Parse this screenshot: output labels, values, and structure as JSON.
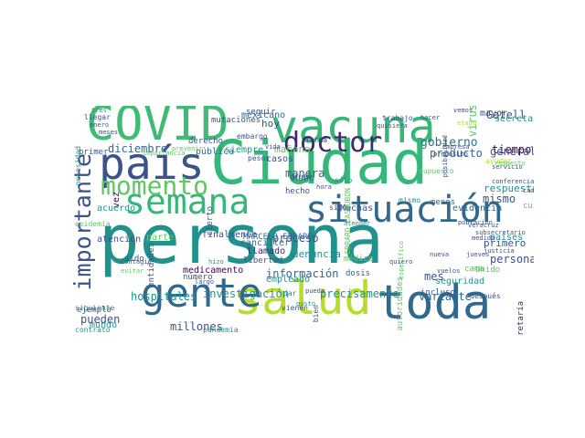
{
  "colors": {
    "background": "#ffffff",
    "viridis": [
      "#440154",
      "#3b528b",
      "#21918c",
      "#5ec962",
      "#fde725"
    ]
  },
  "words": [
    {
      "text": "persona",
      "c": "#21918c"
    },
    {
      "text": "Ciudad",
      "c": "#35b779"
    },
    {
      "text": "COVID",
      "c": "#3fbc73"
    },
    {
      "text": "vacuna",
      "c": "#35b779"
    },
    {
      "text": "país",
      "c": "#3b528b"
    },
    {
      "text": "salud",
      "c": "#b5de2b"
    },
    {
      "text": "toda",
      "c": "#31688e"
    },
    {
      "text": "semana",
      "c": "#35b779"
    },
    {
      "text": "gente",
      "c": "#31688e"
    },
    {
      "text": "situación",
      "c": "#31688e"
    },
    {
      "text": "momento",
      "c": "#5ec962"
    },
    {
      "text": "doctor",
      "c": "#3b2a6e"
    },
    {
      "text": "importante",
      "c": "#3b528b"
    },
    {
      "text": "investigación",
      "c": "#21918c"
    },
    {
      "text": "hospitales",
      "c": "#21918c"
    },
    {
      "text": "precisamente",
      "c": "#21918c"
    },
    {
      "text": "variante",
      "c": "#31688e"
    },
    {
      "text": "gobierno",
      "c": "#2c728e"
    },
    {
      "text": "diciembre",
      "c": "#31688e"
    },
    {
      "text": "manera",
      "c": "#31688e"
    },
    {
      "text": "mañana",
      "c": "#5ec962"
    },
    {
      "text": "producto",
      "c": "#31688e"
    },
    {
      "text": "Gatell",
      "c": "#3b528b"
    },
    {
      "text": "fase",
      "c": "#3b528b"
    },
    {
      "text": "tiempo",
      "c": "#440154"
    },
    {
      "text": "general",
      "c": "#3b528b"
    },
    {
      "text": "mismo",
      "c": "#3b528b"
    },
    {
      "text": "proceso",
      "c": "#3b528b"
    },
    {
      "text": "información",
      "c": "#31688e"
    },
    {
      "text": "denuncia",
      "c": "#21918c"
    },
    {
      "text": "llamado",
      "c": "#3b2a6e"
    },
    {
      "text": "medicamento",
      "c": "#440154"
    },
    {
      "text": "millones",
      "c": "#3b528b"
    },
    {
      "text": "pueden",
      "c": "#3b528b"
    },
    {
      "text": "mundo",
      "c": "#21918c"
    },
    {
      "text": "mes",
      "c": "#3b528b"
    },
    {
      "text": "personal",
      "c": "#3b528b"
    },
    {
      "text": "seguridad",
      "c": "#21918c"
    },
    {
      "text": "primero",
      "c": "#3b528b"
    },
    {
      "text": "países",
      "c": "#21918c"
    },
    {
      "text": "respuesta",
      "c": "#21918c"
    },
    {
      "text": "ayudar",
      "c": "#b5de2b"
    },
    {
      "text": "respecto",
      "c": "#5ec962"
    },
    {
      "text": "mayor",
      "c": "#3b528b"
    },
    {
      "text": "secretario",
      "c": "#21918c"
    },
    {
      "text": "virus",
      "c": "#5ec962"
    },
    {
      "text": "Secretaría",
      "c": "#3b2a6e"
    },
    {
      "text": "casos",
      "c": "#3b528b"
    },
    {
      "text": "hoy",
      "c": "#3b528b"
    },
    {
      "text": "mexicano",
      "c": "#31688e"
    },
    {
      "text": "canciller",
      "c": "#31688e"
    },
    {
      "text": "MARCELO EBRARD",
      "c": "#31688e"
    },
    {
      "text": "siempre",
      "c": "#21918c"
    },
    {
      "text": "Hugo",
      "c": "#31688e"
    },
    {
      "text": "hecho",
      "c": "#3b528b"
    },
    {
      "text": "menos",
      "c": "#31688e"
    },
    {
      "text": "evidencia",
      "c": "#31688e"
    },
    {
      "text": "Muchas",
      "c": "#3b528b"
    },
    {
      "text": "cuidado",
      "c": "#5ec962"
    },
    {
      "text": "vez",
      "c": "#440154"
    },
    {
      "text": "acuerdo",
      "c": "#21918c"
    },
    {
      "text": "parte",
      "c": "#5ec962"
    },
    {
      "text": "finalmente",
      "c": "#3b528b"
    },
    {
      "text": "libertad",
      "c": "#3b528b"
    },
    {
      "text": "empleado",
      "c": "#21918c"
    },
    {
      "text": "dosis",
      "c": "#31688e"
    },
    {
      "text": "médico",
      "c": "#5ec962"
    },
    {
      "text": "incluso",
      "c": "#3b528b"
    },
    {
      "text": "cama",
      "c": "#5ec962"
    },
    {
      "text": "Unido",
      "c": "#5ec962"
    },
    {
      "text": "después",
      "c": "#3b528b"
    },
    {
      "text": "atención",
      "c": "#3b528b"
    },
    {
      "text": "ejemplo",
      "c": "#3b528b"
    },
    {
      "text": "entidades",
      "c": "#3b528b"
    },
    {
      "text": "número",
      "c": "#3b528b"
    },
    {
      "text": "sido",
      "c": "#3b528b"
    },
    {
      "text": "pública",
      "c": "#31688e"
    },
    {
      "text": "derecho",
      "c": "#3b528b"
    },
    {
      "text": "mutaciones",
      "c": "#3b528b"
    },
    {
      "text": "seguir",
      "c": "#3b528b"
    },
    {
      "text": "cierto",
      "c": "#3b528b"
    },
    {
      "text": "sigue",
      "c": "#3b528b"
    },
    {
      "text": "EBRARD CASAUBÓN",
      "c": "#5ec962"
    },
    {
      "text": "mismo",
      "c": "#21918c"
    },
    {
      "text": "supuesto",
      "c": "#5ec962"
    },
    {
      "text": "primer",
      "c": "#3b528b"
    },
    {
      "text": "autoridades",
      "c": "#5ec962"
    },
    {
      "text": "siguiente",
      "c": "#21918c"
    },
    {
      "text": "contrato",
      "c": "#21918c"
    },
    {
      "text": "pandemia",
      "c": "#21918c"
    },
    {
      "text": "vienen",
      "c": "#3b528b"
    },
    {
      "text": "bien",
      "c": "#3b528b"
    },
    {
      "text": "dar",
      "c": "#21918c"
    },
    {
      "text": "grupo",
      "c": "#3b528b"
    },
    {
      "text": "hora",
      "c": "#3b528b"
    },
    {
      "text": "sólo",
      "c": "#21918c"
    },
    {
      "text": "forma",
      "c": "#3b528b"
    },
    {
      "text": "embargo",
      "c": "#3b528b"
    },
    {
      "text": "pesos",
      "c": "#3b528b"
    },
    {
      "text": "trabajo",
      "c": "#3b528b"
    },
    {
      "text": "quisiera",
      "c": "#3b528b"
    },
    {
      "text": "vida",
      "c": "#3b528b"
    },
    {
      "text": "meses",
      "c": "#3b528b"
    },
    {
      "text": "llegar",
      "c": "#3b528b"
    },
    {
      "text": "enero",
      "c": "#3b528b"
    },
    {
      "text": "tres",
      "c": "#21918c"
    },
    {
      "text": "importancia",
      "c": "#5ec962"
    },
    {
      "text": "prevenir",
      "c": "#5ec962"
    },
    {
      "text": "población",
      "c": "#3b528b"
    },
    {
      "text": "medida",
      "c": "#3b528b"
    },
    {
      "text": "subsecretario",
      "c": "#3b528b"
    },
    {
      "text": "Veracruz",
      "c": "#3b528b"
    },
    {
      "text": "servicio",
      "c": "#3b528b"
    },
    {
      "text": "conferencia",
      "c": "#3b528b"
    },
    {
      "text": "cada",
      "c": "#3b528b"
    },
    {
      "text": "vuelos",
      "c": "#3b528b"
    },
    {
      "text": "justicia",
      "c": "#3b528b"
    },
    {
      "text": "nueva",
      "c": "#3b528b"
    },
    {
      "text": "quiero",
      "c": "#3b528b"
    },
    {
      "text": "específico",
      "c": "#5ec962"
    },
    {
      "text": "pueda",
      "c": "#3b528b"
    },
    {
      "text": "largo",
      "c": "#3b528b"
    },
    {
      "text": "gusto",
      "c": "#21918c"
    },
    {
      "text": "empresa",
      "c": "#3b528b"
    },
    {
      "text": "propósito",
      "c": "#3b528b"
    },
    {
      "text": "posibilidad",
      "c": "#3b528b"
    },
    {
      "text": "efectivamente",
      "c": "#21918c"
    },
    {
      "text": "necesidad",
      "c": "#21918c"
    },
    {
      "text": "sector salud",
      "c": "#21918c"
    },
    {
      "text": "epidemia",
      "c": "#5ec962"
    },
    {
      "text": "contagio",
      "c": "#3b528b"
    },
    {
      "text": "evitar",
      "c": "#5ec962"
    },
    {
      "text": "hizo",
      "c": "#21918c"
    },
    {
      "text": "hacer",
      "c": "#3b528b"
    },
    {
      "text": "vemos",
      "c": "#3b528b"
    },
    {
      "text": "etapa",
      "c": "#b5de2b"
    },
    {
      "text": "jueves",
      "c": "#3b528b"
    },
    {
      "text": "atender",
      "c": "#21918c"
    }
  ]
}
